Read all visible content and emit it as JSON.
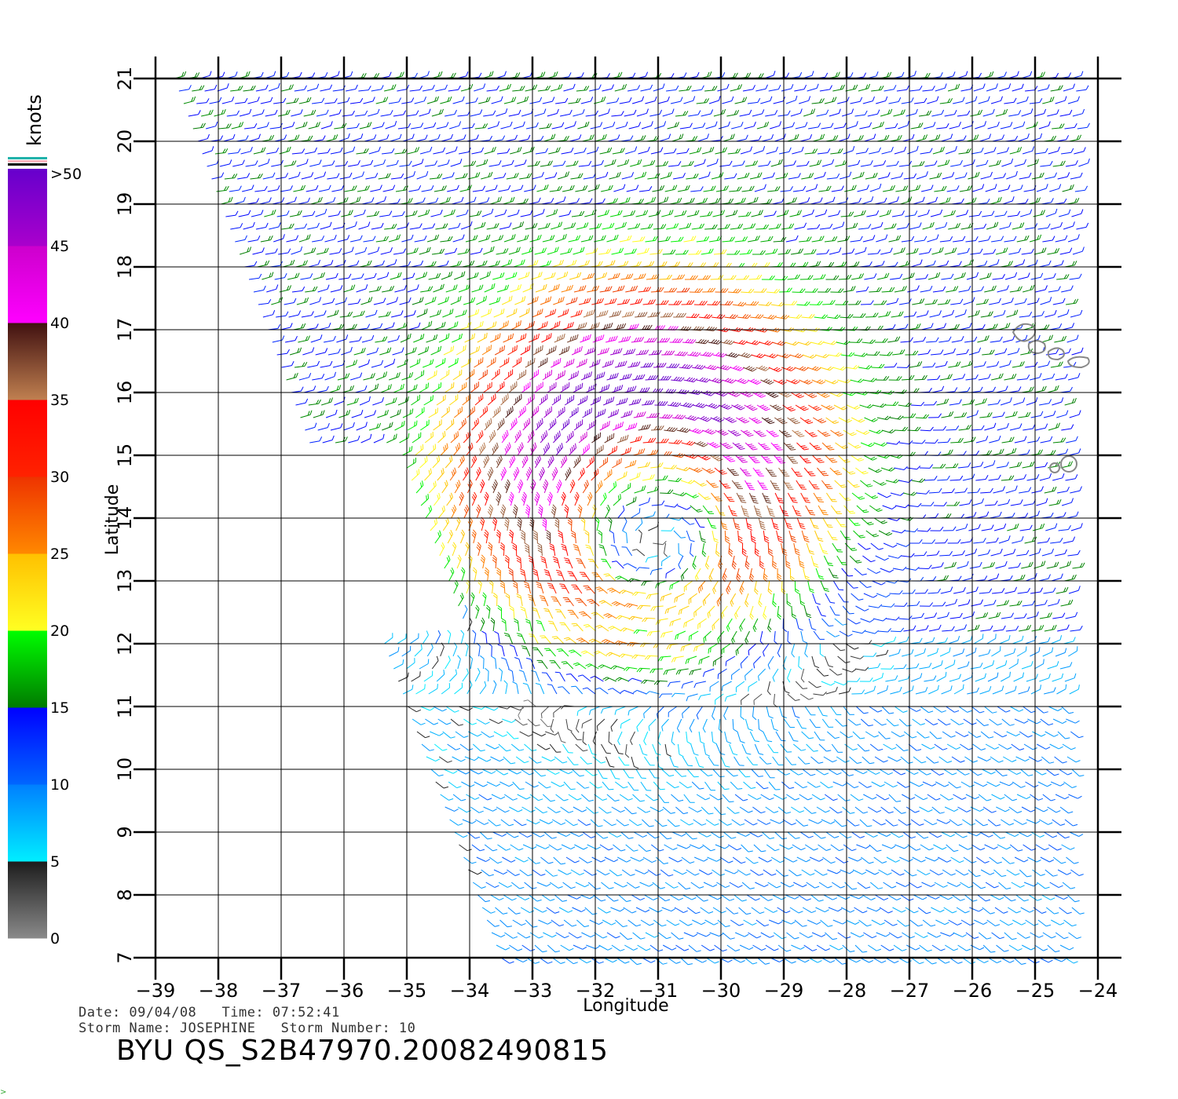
{
  "chart_data": {
    "type": "wind-barb-map",
    "xlabel": "Longitude",
    "ylabel": "Latitude",
    "xlim": [
      -39,
      -24
    ],
    "ylim": [
      7,
      21
    ],
    "xticks": [
      "-39",
      "-38",
      "-37",
      "-36",
      "-35",
      "-34",
      "-33",
      "-32",
      "-31",
      "-30",
      "-29",
      "-28",
      "-27",
      "-26",
      "-25",
      "-24"
    ],
    "yticks": [
      "7",
      "8",
      "9",
      "10",
      "11",
      "12",
      "13",
      "14",
      "15",
      "16",
      "17",
      "18",
      "19",
      "20",
      "21"
    ],
    "grid": true,
    "storm_center": {
      "lon": -31.2,
      "lat": 14.3
    },
    "islands": [
      {
        "name": "Cape Verde north",
        "lon": -24.6,
        "lat": 16.9
      },
      {
        "name": "Cape Verde south",
        "lon": -24.5,
        "lat": 14.9
      }
    ],
    "colorbar": {
      "unit_label": "knots",
      "ticks": [
        "0",
        "5",
        "10",
        "15",
        "20",
        "25",
        "30",
        "35",
        "40",
        "45",
        ">50"
      ],
      "bands": [
        {
          "from": 0,
          "to": 5,
          "colors": [
            "#8a8a8a",
            "#1c1c1c"
          ]
        },
        {
          "from": 5,
          "to": 10,
          "colors": [
            "#00eeff",
            "#007fff"
          ]
        },
        {
          "from": 10,
          "to": 15,
          "colors": [
            "#0066ff",
            "#0000ff"
          ]
        },
        {
          "from": 15,
          "to": 20,
          "colors": [
            "#007a00",
            "#00ff00"
          ]
        },
        {
          "from": 20,
          "to": 25,
          "colors": [
            "#ffff22",
            "#ffc000"
          ]
        },
        {
          "from": 25,
          "to": 30,
          "colors": [
            "#ff8800",
            "#ee3300"
          ]
        },
        {
          "from": 30,
          "to": 35,
          "colors": [
            "#ff2200",
            "#ff0000"
          ]
        },
        {
          "from": 35,
          "to": 40,
          "colors": [
            "#c08050",
            "#401010"
          ]
        },
        {
          "from": 40,
          "to": 45,
          "colors": [
            "#ff00ff",
            "#cc00cc"
          ]
        },
        {
          "from": 45,
          "to": 50,
          "colors": [
            "#aa00cc",
            "#6600cc"
          ]
        }
      ],
      "special_colors": [
        "#20b2aa",
        "#ffb6c1",
        "#000000"
      ]
    }
  },
  "info": {
    "line1": "Date: 09/04/08   Time: 07:52:41",
    "line2": "Storm Name: JOSEPHINE   Storm Number: 10",
    "product": "BYU QS_S2B47970.20082490815"
  }
}
